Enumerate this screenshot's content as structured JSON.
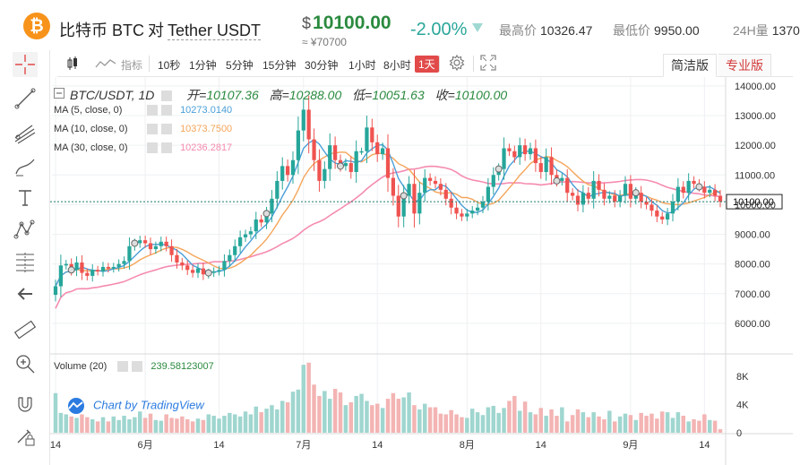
{
  "header": {
    "coin_symbol": "₿",
    "pair_name": "比特币 BTC",
    "pair_sep": "对",
    "pair_quote": "Tether USDT",
    "price": "10100.00",
    "price_currency": "$",
    "cny_price": "≈ ¥70700",
    "change": "-2.00%",
    "high_label": "最高价",
    "high_value": "10326.47",
    "low_label": "最低价",
    "low_value": "9950.00",
    "volume_label": "24H量",
    "volume_value": "1370"
  },
  "toolbar": {
    "indicator_label": "指标",
    "intervals": [
      "10秒",
      "1分钟",
      "5分钟",
      "15分钟",
      "30分钟",
      "1小时",
      "8小时",
      "1天"
    ],
    "active_interval": "1天",
    "tab_simple": "简洁版",
    "tab_pro": "专业版"
  },
  "legend": {
    "title": "BTC/USDT, 1D",
    "open_label": "开=",
    "open": "10107.36",
    "high_label": "高=",
    "high": "10288.00",
    "low_label": "低=",
    "low": "10051.63",
    "close_label": "收=",
    "close": "10100.00",
    "ma5_label": "MA (5, close, 0)",
    "ma5": "10273.0140",
    "ma10_label": "MA (10, close, 0)",
    "ma10": "10373.7500",
    "ma30_label": "MA (30, close, 0)",
    "ma30": "10236.2817",
    "volume_label": "Volume (20)",
    "volume": "239.58123007",
    "watermark": "Chart by TradingView"
  },
  "colors": {
    "up": "#26a69a",
    "down": "#ef5350",
    "ma5": "#4a9fd8",
    "ma10": "#f5a55a",
    "ma30": "#f58bb0",
    "accent_red": "#e24a4a",
    "price_green": "#2a8a3e"
  },
  "chart_data": {
    "type": "candlestick",
    "title": "BTC/USDT, 1D",
    "price_axis_ticks": [
      6000,
      7000,
      8000,
      9000,
      10000,
      11000,
      12000,
      13000,
      14000
    ],
    "price_axis_labels": [
      "6000.00",
      "7000.00",
      "8000.00",
      "9000.00",
      "10000.00",
      "11000.00",
      "12000.00",
      "13000.00",
      "14000.00"
    ],
    "ylim": [
      5000,
      14300
    ],
    "last_price": 10100.0,
    "last_price_label": "10100.00",
    "volume_axis_labels": [
      "0",
      "4K",
      "8K"
    ],
    "volume_ylim": [
      0,
      10000
    ],
    "x_labels": [
      "14",
      "6月",
      "14",
      "7月",
      "14",
      "8月",
      "14",
      "9月",
      "14"
    ],
    "x_label_day_index": [
      0,
      17,
      31,
      47,
      61,
      78,
      92,
      109,
      123
    ],
    "close": [
      7250,
      7950,
      8000,
      7800,
      8050,
      7700,
      7600,
      7800,
      7750,
      7900,
      7850,
      7900,
      8000,
      8100,
      8600,
      8700,
      8800,
      8700,
      8500,
      8600,
      8750,
      8600,
      8300,
      8050,
      7950,
      7800,
      7700,
      7850,
      7650,
      7700,
      7750,
      7800,
      8100,
      8300,
      8600,
      8900,
      9000,
      9100,
      9500,
      9400,
      9700,
      10200,
      10800,
      11300,
      11000,
      11500,
      12500,
      13200,
      12200,
      11500,
      10800,
      11200,
      12000,
      11500,
      11300,
      11400,
      11100,
      11800,
      11800,
      12600,
      12100,
      11700,
      11900,
      10900,
      10300,
      9600,
      10300,
      10700,
      9700,
      10400,
      10900,
      10800,
      10700,
      10500,
      10200,
      9900,
      9700,
      9600,
      9700,
      9800,
      9900,
      10100,
      10600,
      11000,
      11200,
      11900,
      11800,
      11600,
      12000,
      11700,
      11900,
      11400,
      11100,
      11600,
      11000,
      10800,
      10900,
      10400,
      10300,
      10000,
      10400,
      10200,
      10800,
      10500,
      10200,
      10300,
      10100,
      10300,
      10700,
      10200,
      10400,
      10100,
      10000,
      9800,
      9600,
      9500,
      9700,
      10100,
      10600,
      10400,
      10800,
      10700,
      10600,
      10400,
      10500,
      10300,
      10100
    ],
    "volume": [
      5600,
      2800,
      2600,
      2300,
      2100,
      2600,
      2200,
      1900,
      1600,
      2200,
      1600,
      2300,
      1800,
      2400,
      1900,
      2200,
      3000,
      2100,
      2700,
      1800,
      1700,
      2600,
      2100,
      2000,
      2300,
      1900,
      1600,
      2000,
      1800,
      2600,
      2400,
      2000,
      2400,
      2800,
      2600,
      2300,
      3000,
      2600,
      3700,
      2900,
      3400,
      3900,
      3300,
      4500,
      4300,
      5800,
      6100,
      9600,
      9900,
      6800,
      5200,
      5900,
      4800,
      6200,
      5700,
      3900,
      4300,
      5200,
      5500,
      4500,
      3900,
      4100,
      3500,
      4800,
      5600,
      4800,
      5000,
      5700,
      3900,
      3300,
      4100,
      3600,
      3600,
      2700,
      2600,
      3200,
      2600,
      2200,
      2100,
      3400,
      2900,
      2500,
      3600,
      3800,
      2800,
      3500,
      4500,
      5200,
      3100,
      4400,
      2900,
      2600,
      3500,
      2400,
      3300,
      2400,
      3600,
      1600,
      2500,
      3300,
      2900,
      2200,
      2900,
      2300,
      1900,
      3100,
      1600,
      2300,
      2700,
      2500,
      1800,
      2800,
      2400,
      2700,
      2000,
      3000,
      2900,
      2100,
      2900,
      2400,
      1600,
      1900,
      1700,
      2600,
      1800,
      1700,
      500
    ]
  }
}
